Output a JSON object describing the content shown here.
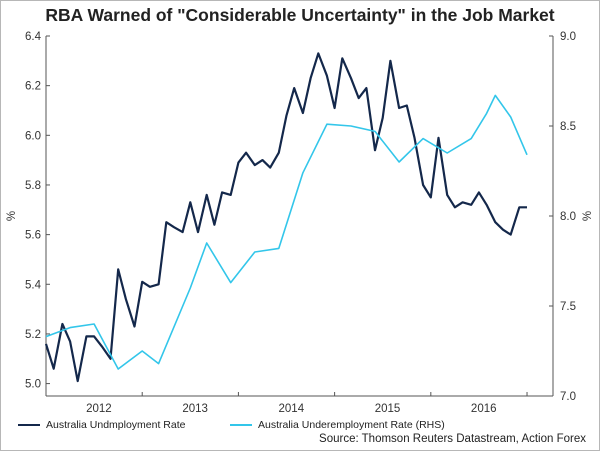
{
  "chart_data": {
    "type": "line",
    "title": "RBA Warned of \"Considerable Uncertainty\" in the Job Market",
    "source": "Source: Thomson Reuters Datastream, Action Forex",
    "ylabel_left": "%",
    "ylabel_right": "%",
    "xlim": [
      2011.45,
      2016.72
    ],
    "ylim_left": [
      4.95,
      6.4
    ],
    "ylim_right": [
      7.0,
      9.0
    ],
    "x_ticks": [
      2012,
      2013,
      2014,
      2015,
      2016
    ],
    "x_tick_labels": [
      "2012",
      "2013",
      "2014",
      "2015",
      "2016"
    ],
    "y_ticks_left": [
      5.0,
      5.2,
      5.4,
      5.6,
      5.8,
      6.0,
      6.2,
      6.4
    ],
    "y_tick_labels_left": [
      "5.0",
      "5.2",
      "5.4",
      "5.6",
      "5.8",
      "6.0",
      "6.2",
      "6.4"
    ],
    "y_ticks_right": [
      7.0,
      7.5,
      8.0,
      8.5,
      9.0
    ],
    "y_tick_labels_right": [
      "7.0",
      "7.5",
      "8.0",
      "8.5",
      "9.0"
    ],
    "grid": false,
    "colors": {
      "unemployment": "#14284b",
      "underemployment": "#33c6ea",
      "axis": "#555555"
    },
    "series": [
      {
        "name": "Australia Undmployment Rate",
        "axis": "left",
        "x": [
          2011.45,
          2011.53,
          2011.62,
          2011.7,
          2011.78,
          2011.87,
          2011.95,
          2012.03,
          2012.12,
          2012.2,
          2012.28,
          2012.37,
          2012.45,
          2012.53,
          2012.62,
          2012.7,
          2012.78,
          2012.87,
          2012.95,
          2013.03,
          2013.12,
          2013.2,
          2013.28,
          2013.37,
          2013.45,
          2013.53,
          2013.62,
          2013.7,
          2013.78,
          2013.87,
          2013.95,
          2014.03,
          2014.12,
          2014.2,
          2014.28,
          2014.37,
          2014.45,
          2014.53,
          2014.62,
          2014.7,
          2014.78,
          2014.87,
          2014.95,
          2015.03,
          2015.12,
          2015.2,
          2015.28,
          2015.37,
          2015.45,
          2015.53,
          2015.62,
          2015.7,
          2015.78,
          2015.87,
          2015.95,
          2016.03,
          2016.12,
          2016.2,
          2016.28,
          2016.37,
          2016.45
        ],
        "values": [
          5.16,
          5.06,
          5.24,
          5.17,
          5.01,
          5.19,
          5.19,
          5.15,
          5.1,
          5.46,
          5.34,
          5.23,
          5.41,
          5.39,
          5.4,
          5.65,
          5.63,
          5.61,
          5.73,
          5.61,
          5.76,
          5.64,
          5.77,
          5.76,
          5.89,
          5.93,
          5.88,
          5.9,
          5.87,
          5.93,
          6.08,
          6.19,
          6.09,
          6.23,
          6.33,
          6.24,
          6.11,
          6.31,
          6.23,
          6.15,
          6.19,
          5.94,
          6.07,
          6.3,
          6.11,
          6.12,
          5.99,
          5.8,
          5.75,
          5.99,
          5.76,
          5.71,
          5.73,
          5.72,
          5.77,
          5.72,
          5.65,
          5.62,
          5.6,
          5.71,
          5.71
        ]
      },
      {
        "name": "Australia Underemployment Rate (RHS)",
        "axis": "right",
        "x": [
          2011.45,
          2011.7,
          2011.95,
          2012.2,
          2012.45,
          2012.62,
          2012.95,
          2013.12,
          2013.37,
          2013.62,
          2013.87,
          2014.12,
          2014.37,
          2014.62,
          2014.87,
          2015.12,
          2015.37,
          2015.62,
          2015.87,
          2016.03,
          2016.12,
          2016.28,
          2016.45
        ],
        "values": [
          7.33,
          7.38,
          7.4,
          7.15,
          7.25,
          7.18,
          7.6,
          7.85,
          7.63,
          7.8,
          7.82,
          8.24,
          8.51,
          8.5,
          8.47,
          8.3,
          8.43,
          8.35,
          8.43,
          8.57,
          8.67,
          8.55,
          8.34
        ]
      }
    ]
  }
}
